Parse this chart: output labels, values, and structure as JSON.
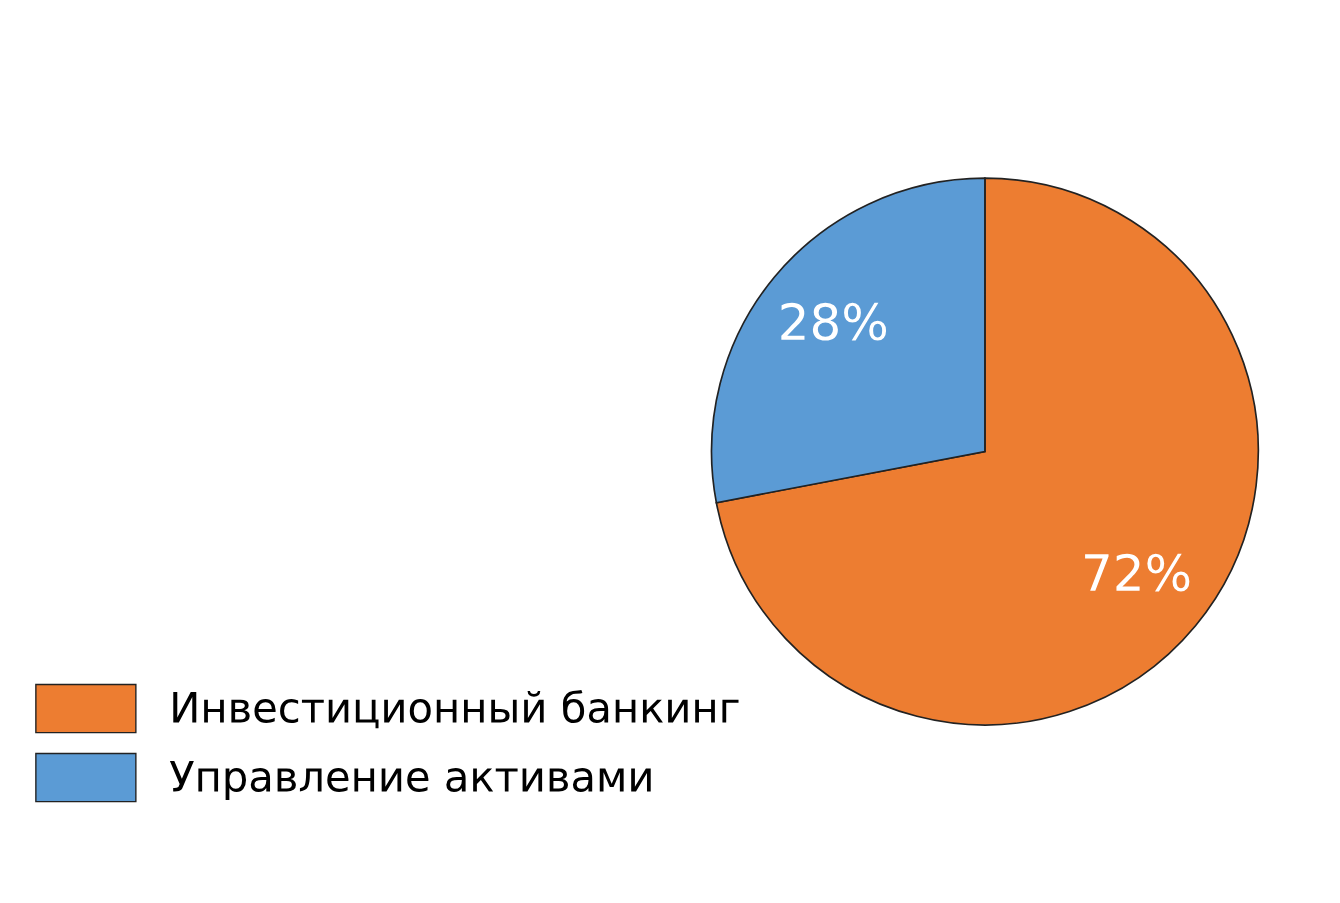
{
  "chart_data": {
    "type": "pie",
    "categories": [
      "Инвестиционный банкинг",
      "Управление активами"
    ],
    "values": [
      72,
      28
    ],
    "colors": [
      "#ed7d31",
      "#5b9bd5"
    ],
    "value_labels": [
      "72%",
      "28%"
    ],
    "legend": "bottom left"
  }
}
